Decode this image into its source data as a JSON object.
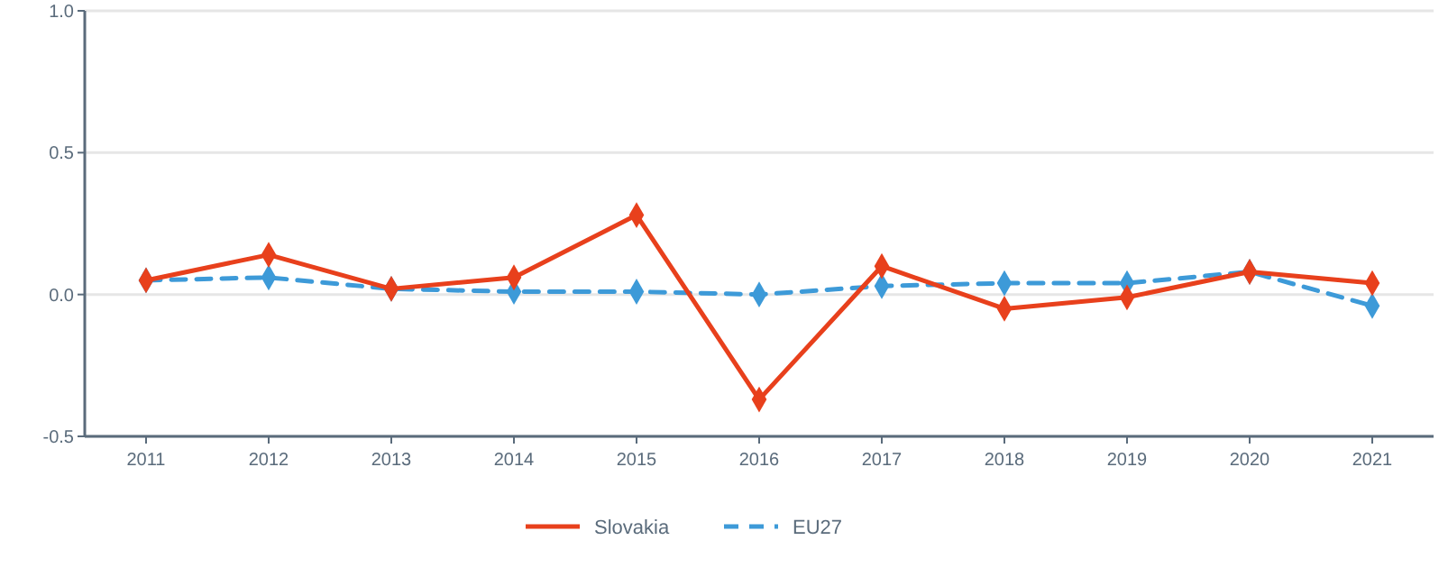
{
  "chart_data": {
    "type": "line",
    "categories": [
      "2011",
      "2012",
      "2013",
      "2014",
      "2015",
      "2016",
      "2017",
      "2018",
      "2019",
      "2020",
      "2021"
    ],
    "series": [
      {
        "name": "Slovakia",
        "color": "#e8401c",
        "line_style": "solid",
        "values": [
          0.05,
          0.14,
          0.02,
          0.06,
          0.28,
          -0.37,
          0.1,
          -0.05,
          -0.01,
          0.08,
          0.04
        ]
      },
      {
        "name": "EU27",
        "color": "#3d9ad8",
        "line_style": "dashed",
        "values": [
          0.05,
          0.06,
          0.02,
          0.01,
          0.01,
          0.0,
          0.03,
          0.04,
          0.04,
          0.08,
          -0.04
        ]
      }
    ],
    "ylim": [
      -0.5,
      1.0
    ],
    "yticks": [
      {
        "value": -0.5,
        "label": "-0.5"
      },
      {
        "value": 0,
        "label": "0.0"
      },
      {
        "value": 0.5,
        "label": "0.5"
      },
      {
        "value": 1,
        "label": "1.0"
      }
    ],
    "grid": "y",
    "legend": "bottom",
    "marker": "diamond"
  }
}
